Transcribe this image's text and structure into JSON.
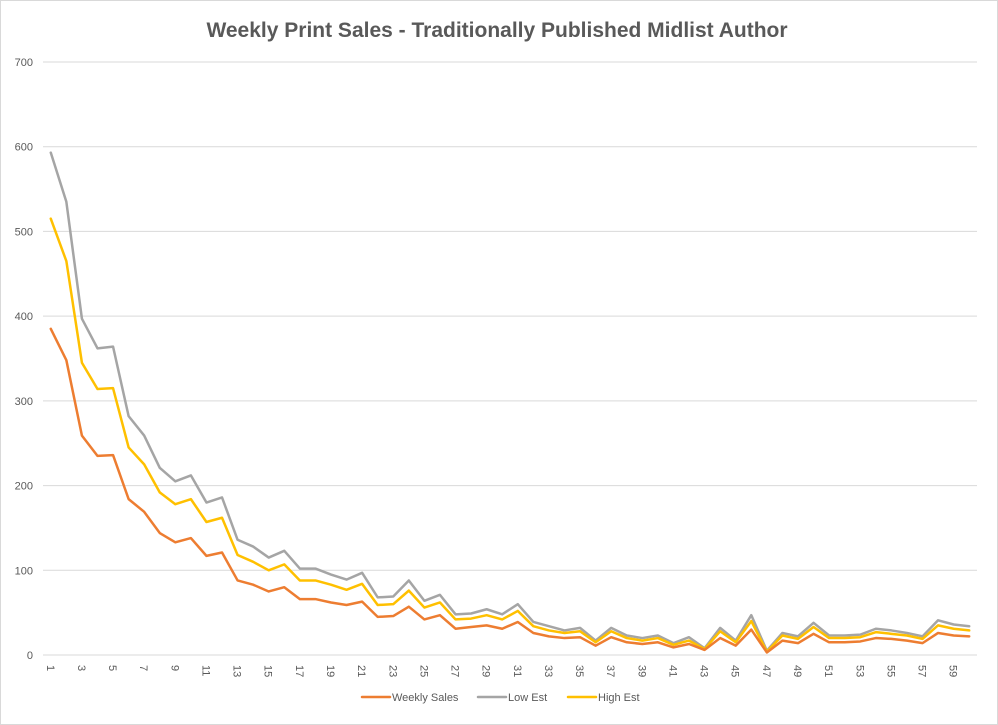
{
  "chart_data": {
    "type": "line",
    "title": "Weekly Print Sales - Traditionally Published Midlist Author",
    "xlabel": "",
    "ylabel": "",
    "ylim": [
      0,
      700
    ],
    "yticks": [
      0,
      100,
      200,
      300,
      400,
      500,
      600,
      700
    ],
    "x": [
      1,
      2,
      3,
      4,
      5,
      6,
      7,
      8,
      9,
      10,
      11,
      12,
      13,
      14,
      15,
      16,
      17,
      18,
      19,
      20,
      21,
      22,
      23,
      24,
      25,
      26,
      27,
      28,
      29,
      30,
      31,
      32,
      33,
      34,
      35,
      36,
      37,
      38,
      39,
      40,
      41,
      42,
      43,
      44,
      45,
      46,
      47,
      48,
      49,
      50,
      51,
      52,
      53,
      54,
      55,
      56,
      57,
      58,
      59,
      60
    ],
    "xticks": [
      1,
      3,
      5,
      7,
      9,
      11,
      13,
      15,
      17,
      19,
      21,
      23,
      25,
      27,
      29,
      31,
      33,
      35,
      37,
      39,
      41,
      43,
      45,
      47,
      49,
      51,
      53,
      55,
      57,
      59
    ],
    "grid": true,
    "legend_position": "bottom",
    "series": [
      {
        "name": "Weekly Sales",
        "color": "#ED7D31",
        "values": [
          385,
          348,
          259,
          235,
          236,
          184,
          169,
          144,
          133,
          138,
          117,
          121,
          88,
          83,
          75,
          80,
          66,
          66,
          62,
          59,
          63,
          45,
          46,
          57,
          42,
          47,
          31,
          33,
          35,
          31,
          39,
          26,
          22,
          20,
          21,
          11,
          21,
          15,
          13,
          15,
          9,
          13,
          6,
          20,
          11,
          30,
          3,
          17,
          14,
          25,
          15,
          15,
          16,
          20,
          19,
          17,
          14,
          26,
          23,
          22
        ]
      },
      {
        "name": "Low Est",
        "color": "#A5A5A5",
        "values": [
          593,
          535,
          397,
          362,
          364,
          282,
          259,
          221,
          205,
          212,
          180,
          186,
          136,
          128,
          115,
          123,
          102,
          102,
          95,
          89,
          97,
          68,
          69,
          88,
          64,
          71,
          48,
          49,
          54,
          48,
          60,
          39,
          34,
          29,
          32,
          17,
          32,
          23,
          20,
          23,
          14,
          21,
          8,
          32,
          17,
          47,
          5,
          26,
          22,
          38,
          23,
          23,
          24,
          31,
          29,
          26,
          22,
          41,
          36,
          34
        ]
      },
      {
        "name": "High Est",
        "color": "#FFC000",
        "values": [
          515,
          465,
          345,
          314,
          315,
          245,
          225,
          192,
          178,
          184,
          157,
          162,
          118,
          110,
          100,
          107,
          88,
          88,
          83,
          77,
          84,
          59,
          60,
          76,
          56,
          62,
          42,
          43,
          47,
          42,
          52,
          34,
          29,
          26,
          28,
          15,
          28,
          20,
          17,
          20,
          12,
          17,
          7,
          28,
          15,
          40,
          4,
          23,
          19,
          33,
          20,
          20,
          21,
          27,
          25,
          23,
          19,
          35,
          31,
          29
        ]
      }
    ]
  }
}
